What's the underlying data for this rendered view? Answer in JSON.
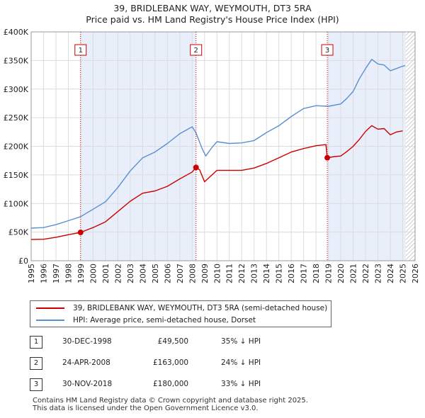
{
  "title": {
    "line1": "39, BRIDLEBANK WAY, WEYMOUTH, DT3 5RA",
    "line2": "Price paid vs. HM Land Registry's House Price Index (HPI)"
  },
  "chart_data": {
    "type": "line",
    "title": "39, BRIDLEBANK WAY, WEYMOUTH, DT3 5RA — Price paid vs. HM Land Registry's House Price Index (HPI)",
    "xlabel": "",
    "ylabel": "",
    "xlim": [
      1995,
      2026
    ],
    "ylim": [
      0,
      400000
    ],
    "x_ticks": [
      "1995",
      "1996",
      "1997",
      "1998",
      "1999",
      "2000",
      "2001",
      "2002",
      "2003",
      "2004",
      "2005",
      "2006",
      "2007",
      "2008",
      "2009",
      "2010",
      "2011",
      "2012",
      "2013",
      "2014",
      "2015",
      "2016",
      "2017",
      "2018",
      "2019",
      "2020",
      "2021",
      "2022",
      "2023",
      "2024",
      "2025",
      "2026"
    ],
    "y_ticks": [
      {
        "value": 0,
        "label": "£0"
      },
      {
        "value": 50000,
        "label": "£50K"
      },
      {
        "value": 100000,
        "label": "£100K"
      },
      {
        "value": 150000,
        "label": "£150K"
      },
      {
        "value": 200000,
        "label": "£200K"
      },
      {
        "value": 250000,
        "label": "£250K"
      },
      {
        "value": 300000,
        "label": "£300K"
      },
      {
        "value": 350000,
        "label": "£350K"
      },
      {
        "value": 400000,
        "label": "£400K"
      }
    ],
    "grid": true,
    "shaded_periods": [
      [
        1998.99,
        2008.31
      ],
      [
        2018.91,
        2025.25
      ]
    ],
    "hatched_after": 2025.25,
    "series": [
      {
        "name": "39, BRIDLEBANK WAY, WEYMOUTH, DT3 5RA (semi-detached house)",
        "color": "#cc0000",
        "points": [
          [
            1995.0,
            37000
          ],
          [
            1996.0,
            37500
          ],
          [
            1997.0,
            41000
          ],
          [
            1998.0,
            45500
          ],
          [
            1998.99,
            49500
          ],
          [
            2000.0,
            58000
          ],
          [
            2001.0,
            68000
          ],
          [
            2002.0,
            86000
          ],
          [
            2003.0,
            104000
          ],
          [
            2004.0,
            118000
          ],
          [
            2005.0,
            122000
          ],
          [
            2006.0,
            130000
          ],
          [
            2007.0,
            143000
          ],
          [
            2008.0,
            155000
          ],
          [
            2008.31,
            163000
          ],
          [
            2008.6,
            159000
          ],
          [
            2009.0,
            138000
          ],
          [
            2009.5,
            148000
          ],
          [
            2010.0,
            158000
          ],
          [
            2011.0,
            158000
          ],
          [
            2012.0,
            158000
          ],
          [
            2013.0,
            162000
          ],
          [
            2014.0,
            170000
          ],
          [
            2015.0,
            180000
          ],
          [
            2016.0,
            190000
          ],
          [
            2017.0,
            196000
          ],
          [
            2018.0,
            201000
          ],
          [
            2018.8,
            203000
          ],
          [
            2018.91,
            180000
          ],
          [
            2019.5,
            182000
          ],
          [
            2020.0,
            183000
          ],
          [
            2020.5,
            191000
          ],
          [
            2021.0,
            200000
          ],
          [
            2021.5,
            212000
          ],
          [
            2022.0,
            226000
          ],
          [
            2022.5,
            236000
          ],
          [
            2023.0,
            230000
          ],
          [
            2023.5,
            231000
          ],
          [
            2024.0,
            220000
          ],
          [
            2024.5,
            225000
          ],
          [
            2025.0,
            227000
          ]
        ]
      },
      {
        "name": "HPI: Average price, semi-detached house, Dorset",
        "color": "#5b8fd0",
        "points": [
          [
            1995.0,
            57000
          ],
          [
            1996.0,
            58000
          ],
          [
            1997.0,
            63000
          ],
          [
            1998.0,
            70000
          ],
          [
            1999.0,
            77000
          ],
          [
            2000.0,
            90000
          ],
          [
            2001.0,
            103000
          ],
          [
            2002.0,
            128000
          ],
          [
            2003.0,
            157000
          ],
          [
            2004.0,
            180000
          ],
          [
            2005.0,
            190000
          ],
          [
            2006.0,
            205000
          ],
          [
            2007.0,
            222000
          ],
          [
            2008.0,
            234000
          ],
          [
            2008.3,
            224000
          ],
          [
            2008.8,
            196000
          ],
          [
            2009.1,
            183000
          ],
          [
            2009.6,
            198000
          ],
          [
            2010.0,
            208000
          ],
          [
            2011.0,
            205000
          ],
          [
            2012.0,
            206000
          ],
          [
            2013.0,
            210000
          ],
          [
            2014.0,
            224000
          ],
          [
            2015.0,
            236000
          ],
          [
            2016.0,
            252000
          ],
          [
            2017.0,
            266000
          ],
          [
            2018.0,
            271000
          ],
          [
            2019.0,
            270000
          ],
          [
            2020.0,
            274000
          ],
          [
            2020.5,
            284000
          ],
          [
            2021.0,
            296000
          ],
          [
            2021.5,
            318000
          ],
          [
            2022.0,
            336000
          ],
          [
            2022.5,
            352000
          ],
          [
            2023.0,
            344000
          ],
          [
            2023.5,
            342000
          ],
          [
            2024.0,
            332000
          ],
          [
            2024.5,
            336000
          ],
          [
            2025.0,
            340000
          ],
          [
            2025.2,
            341000
          ]
        ]
      }
    ],
    "sales": [
      {
        "label": "1",
        "x": 1998.99,
        "value": 49500
      },
      {
        "label": "2",
        "x": 2008.31,
        "value": 163000
      },
      {
        "label": "3",
        "x": 2018.91,
        "value": 180000
      }
    ]
  },
  "legend": {
    "property_label": "39, BRIDLEBANK WAY, WEYMOUTH, DT3 5RA (semi-detached house)",
    "hpi_label": "HPI: Average price, semi-detached house, Dorset",
    "property_color": "#cc0000",
    "hpi_color": "#5b8fd0"
  },
  "transactions": [
    {
      "num": "1",
      "date": "30-DEC-1998",
      "price": "£49,500",
      "hpi": "35% ↓ HPI"
    },
    {
      "num": "2",
      "date": "24-APR-2008",
      "price": "£163,000",
      "hpi": "24% ↓ HPI"
    },
    {
      "num": "3",
      "date": "30-NOV-2018",
      "price": "£180,000",
      "hpi": "33% ↓ HPI"
    }
  ],
  "footer": {
    "line1": "Contains HM Land Registry data © Crown copyright and database right 2025.",
    "line2": "This data is licensed under the Open Government Licence v3.0."
  }
}
